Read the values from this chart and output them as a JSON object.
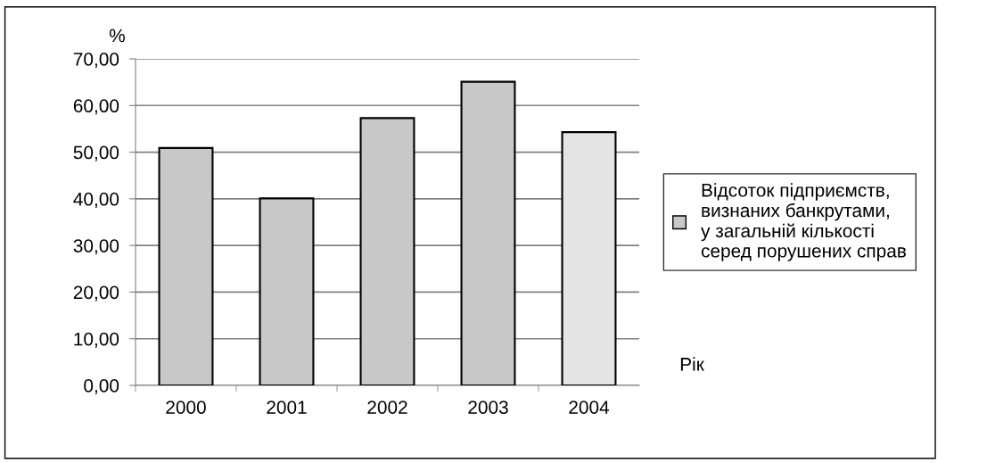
{
  "chart_data": {
    "type": "bar",
    "ylabel": "%",
    "xlabel": "Рік",
    "categories": [
      "2000",
      "2001",
      "2002",
      "2003",
      "2004"
    ],
    "series": [
      {
        "name": "Відсоток підприємств,\nвизнаних банкрутами,\nу загальній кількості\nсеред порушених справ",
        "color": "#c8c8c8",
        "colors": [
          "#c8c8c8",
          "#c8c8c8",
          "#c8c8c8",
          "#c8c8c8",
          "#e4e4e4"
        ],
        "values": [
          50.9,
          40.1,
          57.3,
          65.1,
          54.3
        ]
      }
    ],
    "ylim": [
      0,
      70
    ],
    "yticks": [
      {
        "value": 0,
        "label": "0,00"
      },
      {
        "value": 10,
        "label": "10,00"
      },
      {
        "value": 20,
        "label": "20,00"
      },
      {
        "value": 30,
        "label": "30,00"
      },
      {
        "value": 40,
        "label": "40,00"
      },
      {
        "value": 50,
        "label": "50,00"
      },
      {
        "value": 60,
        "label": "60,00"
      },
      {
        "value": 70,
        "label": "70,00"
      }
    ],
    "grid": "y",
    "legend": "right"
  }
}
